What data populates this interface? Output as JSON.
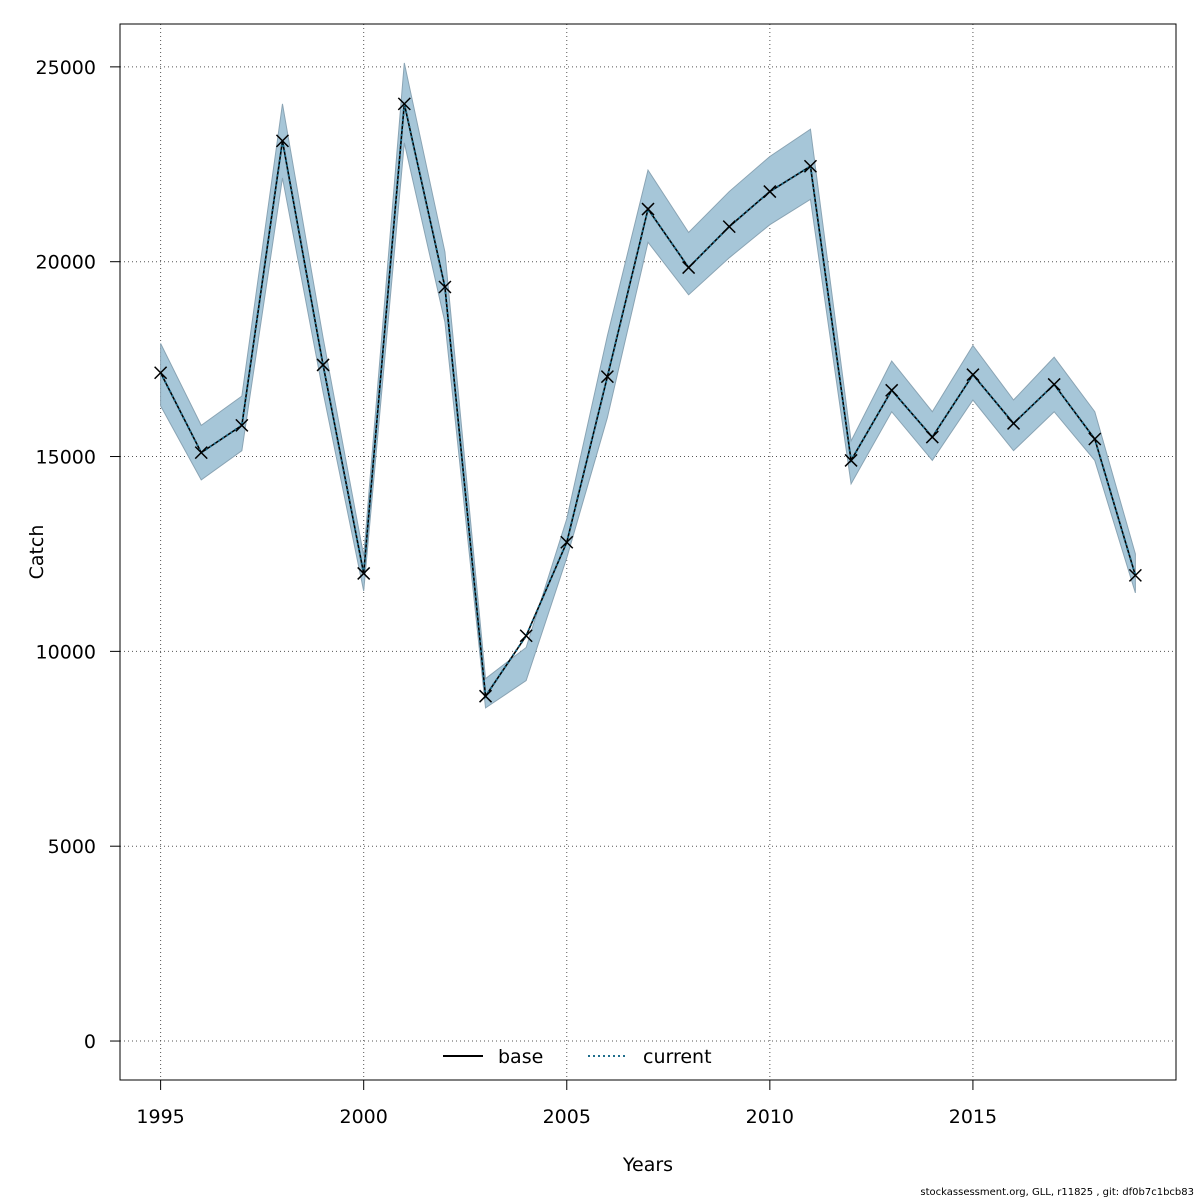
{
  "chart_data": {
    "type": "line",
    "xlabel": "Years",
    "ylabel": "Catch",
    "xlim": [
      1994,
      2020
    ],
    "ylim": [
      -1000,
      26100
    ],
    "x_ticks": [
      1995,
      2000,
      2005,
      2010,
      2015
    ],
    "y_ticks": [
      0,
      5000,
      10000,
      15000,
      20000,
      25000
    ],
    "grid": true,
    "legend_position": "bottom-center",
    "years": [
      1995,
      1996,
      1997,
      1998,
      1999,
      2000,
      2001,
      2002,
      2003,
      2004,
      2005,
      2006,
      2007,
      2008,
      2009,
      2010,
      2011,
      2012,
      2013,
      2014,
      2015,
      2016,
      2017,
      2018,
      2019
    ],
    "series": [
      {
        "name": "base",
        "style": "solid",
        "color": "#000000",
        "values": [
          17150,
          15100,
          15800,
          23100,
          17350,
          12000,
          24050,
          19350,
          8850,
          10400,
          12800,
          17050,
          21350,
          19850,
          20900,
          21800,
          22450,
          14900,
          16700,
          15500,
          17100,
          15850,
          16850,
          15450,
          11950
        ],
        "lower": [
          16300,
          14400,
          15150,
          22150,
          16650,
          11550,
          23050,
          18450,
          8550,
          9250,
          12400,
          16000,
          20500,
          19150,
          20100,
          20950,
          21600,
          14300,
          16150,
          14900,
          16450,
          15150,
          16150,
          14900,
          11500
        ],
        "upper": [
          17900,
          15800,
          16550,
          24050,
          18050,
          12450,
          25100,
          20250,
          9300,
          10100,
          13400,
          18100,
          22350,
          20750,
          21800,
          22700,
          23400,
          15400,
          17450,
          16150,
          17850,
          16450,
          17550,
          16150,
          12500
        ]
      },
      {
        "name": "current",
        "style": "dotted",
        "color": "#1f6e8c",
        "values": [
          17150,
          15100,
          15800,
          23100,
          17350,
          12000,
          24050,
          19350,
          8850,
          10400,
          12800,
          17050,
          21350,
          19850,
          20900,
          21800,
          22450,
          14900,
          16700,
          15500,
          17100,
          15850,
          16850,
          15450,
          11950
        ]
      }
    ],
    "observed": {
      "marker": "x",
      "values": [
        17150,
        15100,
        15800,
        23100,
        17350,
        12000,
        24050,
        19350,
        8850,
        10400,
        12800,
        17050,
        21350,
        19850,
        20900,
        21800,
        22450,
        14900,
        16700,
        15500,
        17100,
        15850,
        16850,
        15450,
        11950
      ]
    },
    "band_color": "#a6c6d8"
  },
  "footer": "stockassessment.org, GLL, r11825 , git: df0b7c1bcb83"
}
